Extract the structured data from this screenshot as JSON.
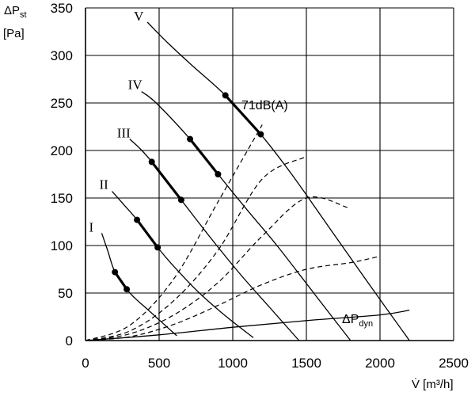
{
  "chart_data": {
    "type": "line",
    "xlabel": "V̇ [m³/h]",
    "ylabel": {
      "main": "ΔP",
      "sub": "st",
      "unit": "[Pa]"
    },
    "xlim": [
      0,
      2500
    ],
    "ylim": [
      0,
      350
    ],
    "x_ticks": [
      0,
      500,
      1000,
      1500,
      2000,
      2500
    ],
    "y_ticks": [
      0,
      50,
      100,
      150,
      200,
      250,
      300,
      350
    ],
    "grid": true,
    "fan_curves": [
      {
        "name": "I",
        "points": [
          [
            110,
            113
          ],
          [
            150,
            95
          ],
          [
            200,
            72
          ],
          [
            280,
            54
          ],
          [
            340,
            44
          ],
          [
            420,
            33
          ],
          [
            520,
            19
          ],
          [
            620,
            5
          ]
        ],
        "bold": [
          [
            200,
            72
          ],
          [
            280,
            54
          ]
        ]
      },
      {
        "name": "II",
        "points": [
          [
            180,
            157
          ],
          [
            260,
            143
          ],
          [
            350,
            127
          ],
          [
            490,
            98
          ],
          [
            600,
            78
          ],
          [
            760,
            52
          ],
          [
            950,
            26
          ],
          [
            1140,
            3
          ]
        ],
        "bold": [
          [
            350,
            127
          ],
          [
            490,
            98
          ]
        ]
      },
      {
        "name": "III",
        "points": [
          [
            300,
            212
          ],
          [
            370,
            202
          ],
          [
            450,
            188
          ],
          [
            650,
            148
          ],
          [
            850,
            108
          ],
          [
            1050,
            70
          ],
          [
            1250,
            35
          ],
          [
            1450,
            0
          ]
        ],
        "bold": [
          [
            450,
            188
          ],
          [
            650,
            148
          ]
        ]
      },
      {
        "name": "IV",
        "points": [
          [
            380,
            262
          ],
          [
            480,
            250
          ],
          [
            710,
            212
          ],
          [
            900,
            175
          ],
          [
            1100,
            137
          ],
          [
            1300,
            100
          ],
          [
            1550,
            50
          ],
          [
            1800,
            0
          ]
        ],
        "bold": [
          [
            710,
            212
          ],
          [
            900,
            175
          ]
        ]
      },
      {
        "name": "V",
        "points": [
          [
            420,
            335
          ],
          [
            560,
            313
          ],
          [
            720,
            290
          ],
          [
            950,
            258
          ],
          [
            1190,
            217
          ],
          [
            1400,
            175
          ],
          [
            1650,
            120
          ],
          [
            1900,
            65
          ],
          [
            2200,
            0
          ]
        ],
        "bold": [
          [
            950,
            258
          ],
          [
            1190,
            217
          ]
        ]
      }
    ],
    "system_curves": [
      {
        "points": [
          [
            0,
            0
          ],
          [
            300,
            16
          ],
          [
            600,
            65
          ],
          [
            900,
            146
          ],
          [
            1200,
            227
          ]
        ]
      },
      {
        "points": [
          [
            0,
            0
          ],
          [
            300,
            10
          ],
          [
            600,
            42
          ],
          [
            900,
            95
          ],
          [
            1200,
            170
          ],
          [
            1490,
            193
          ]
        ]
      },
      {
        "points": [
          [
            0,
            0
          ],
          [
            300,
            7
          ],
          [
            600,
            27
          ],
          [
            900,
            61
          ],
          [
            1200,
            110
          ],
          [
            1500,
            150
          ],
          [
            1780,
            140
          ]
        ]
      },
      {
        "points": [
          [
            0,
            0
          ],
          [
            300,
            4
          ],
          [
            600,
            17
          ],
          [
            900,
            37
          ],
          [
            1200,
            59
          ],
          [
            1500,
            75
          ],
          [
            1800,
            82
          ],
          [
            1980,
            88
          ]
        ]
      }
    ],
    "dynamic_pressure_curve": {
      "points": [
        [
          0,
          0
        ],
        [
          500,
          6
        ],
        [
          1000,
          14
        ],
        [
          1500,
          21
        ],
        [
          2000,
          27
        ],
        [
          2200,
          32
        ]
      ]
    },
    "labels": {
      "curves": [
        "I",
        "II",
        "III",
        "IV",
        "V"
      ],
      "noise": "71dB(A)",
      "dynamic_pressure": {
        "main": "ΔP",
        "sub": "dyn"
      }
    }
  }
}
